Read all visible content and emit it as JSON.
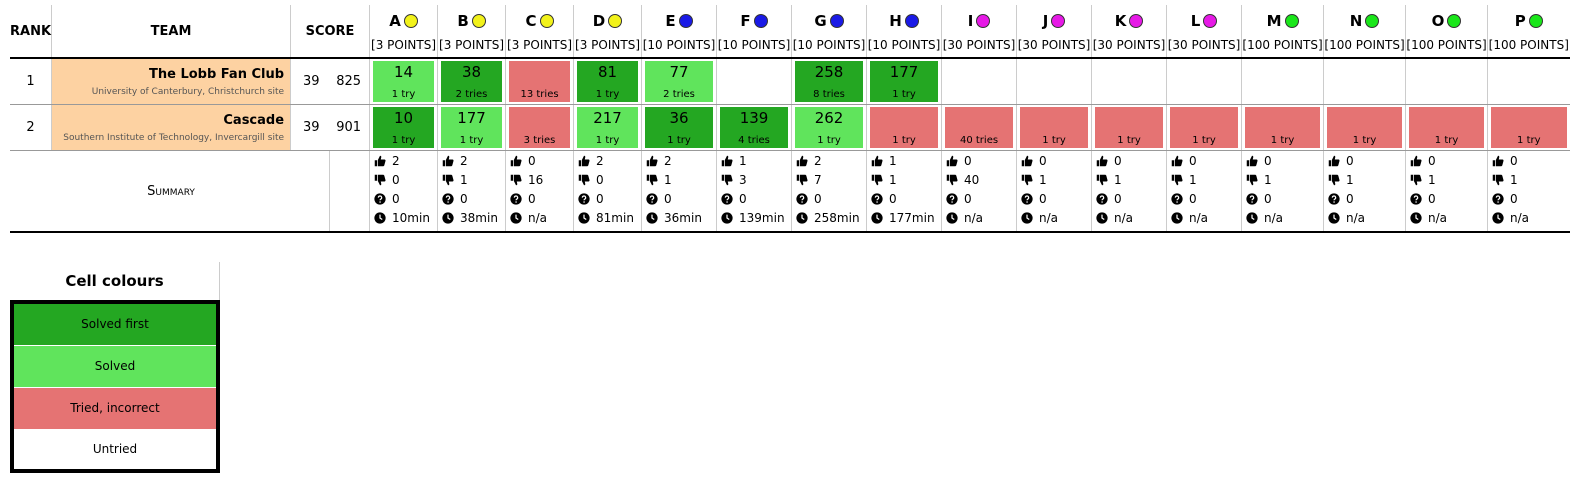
{
  "headers": {
    "rank": "RANK",
    "team": "TEAM",
    "score": "SCORE"
  },
  "problems": [
    {
      "letter": "A",
      "points": "[3 POINTS]",
      "color": "#f2f21a"
    },
    {
      "letter": "B",
      "points": "[3 POINTS]",
      "color": "#f2f21a"
    },
    {
      "letter": "C",
      "points": "[3 POINTS]",
      "color": "#f2f21a"
    },
    {
      "letter": "D",
      "points": "[3 POINTS]",
      "color": "#f2f21a"
    },
    {
      "letter": "E",
      "points": "[10 POINTS]",
      "color": "#1a1ae6"
    },
    {
      "letter": "F",
      "points": "[10 POINTS]",
      "color": "#1a1ae6"
    },
    {
      "letter": "G",
      "points": "[10 POINTS]",
      "color": "#1a1ae6"
    },
    {
      "letter": "H",
      "points": "[10 POINTS]",
      "color": "#1a1ae6"
    },
    {
      "letter": "I",
      "points": "[30 POINTS]",
      "color": "#e619e6"
    },
    {
      "letter": "J",
      "points": "[30 POINTS]",
      "color": "#e619e6"
    },
    {
      "letter": "K",
      "points": "[30 POINTS]",
      "color": "#e619e6"
    },
    {
      "letter": "L",
      "points": "[30 POINTS]",
      "color": "#e619e6"
    },
    {
      "letter": "M",
      "points": "[100 POINTS]",
      "color": "#1ae61a"
    },
    {
      "letter": "N",
      "points": "[100 POINTS]",
      "color": "#1ae61a"
    },
    {
      "letter": "O",
      "points": "[100 POINTS]",
      "color": "#1ae61a"
    },
    {
      "letter": "P",
      "points": "[100 POINTS]",
      "color": "#1ae61a"
    }
  ],
  "teams": [
    {
      "rank": "1",
      "name": "The Lobb Fan Club",
      "institution": "University of Canterbury, Christchurch site",
      "solved": "39",
      "penalty": "825",
      "results": [
        {
          "status": "solved",
          "time": "14",
          "tries": "1 try"
        },
        {
          "status": "sfirst",
          "time": "38",
          "tries": "2 tries"
        },
        {
          "status": "tried",
          "time": "",
          "tries": "13 tries"
        },
        {
          "status": "sfirst",
          "time": "81",
          "tries": "1 try"
        },
        {
          "status": "solved",
          "time": "77",
          "tries": "2 tries"
        },
        {
          "status": "untried",
          "time": "",
          "tries": ""
        },
        {
          "status": "sfirst",
          "time": "258",
          "tries": "8 tries"
        },
        {
          "status": "sfirst",
          "time": "177",
          "tries": "1 try"
        },
        {
          "status": "untried",
          "time": "",
          "tries": ""
        },
        {
          "status": "untried",
          "time": "",
          "tries": ""
        },
        {
          "status": "untried",
          "time": "",
          "tries": ""
        },
        {
          "status": "untried",
          "time": "",
          "tries": ""
        },
        {
          "status": "untried",
          "time": "",
          "tries": ""
        },
        {
          "status": "untried",
          "time": "",
          "tries": ""
        },
        {
          "status": "untried",
          "time": "",
          "tries": ""
        },
        {
          "status": "untried",
          "time": "",
          "tries": ""
        }
      ]
    },
    {
      "rank": "2",
      "name": "Cascade",
      "institution": "Southern Institute of Technology, Invercargill site",
      "solved": "39",
      "penalty": "901",
      "results": [
        {
          "status": "sfirst",
          "time": "10",
          "tries": "1 try"
        },
        {
          "status": "solved",
          "time": "177",
          "tries": "1 try"
        },
        {
          "status": "tried",
          "time": "",
          "tries": "3 tries"
        },
        {
          "status": "solved",
          "time": "217",
          "tries": "1 try"
        },
        {
          "status": "sfirst",
          "time": "36",
          "tries": "1 try"
        },
        {
          "status": "sfirst",
          "time": "139",
          "tries": "4 tries"
        },
        {
          "status": "solved",
          "time": "262",
          "tries": "1 try"
        },
        {
          "status": "tried",
          "time": "",
          "tries": "1 try"
        },
        {
          "status": "tried",
          "time": "",
          "tries": "40 tries"
        },
        {
          "status": "tried",
          "time": "",
          "tries": "1 try"
        },
        {
          "status": "tried",
          "time": "",
          "tries": "1 try"
        },
        {
          "status": "tried",
          "time": "",
          "tries": "1 try"
        },
        {
          "status": "tried",
          "time": "",
          "tries": "1 try"
        },
        {
          "status": "tried",
          "time": "",
          "tries": "1 try"
        },
        {
          "status": "tried",
          "time": "",
          "tries": "1 try"
        },
        {
          "status": "tried",
          "time": "",
          "tries": "1 try"
        }
      ]
    }
  ],
  "summary": {
    "label": "Summary",
    "cols": [
      {
        "up": "2",
        "down": "0",
        "pending": "0",
        "time": "10min"
      },
      {
        "up": "2",
        "down": "1",
        "pending": "0",
        "time": "38min"
      },
      {
        "up": "0",
        "down": "16",
        "pending": "0",
        "time": "n/a"
      },
      {
        "up": "2",
        "down": "0",
        "pending": "0",
        "time": "81min"
      },
      {
        "up": "2",
        "down": "1",
        "pending": "0",
        "time": "36min"
      },
      {
        "up": "1",
        "down": "3",
        "pending": "0",
        "time": "139min"
      },
      {
        "up": "2",
        "down": "7",
        "pending": "0",
        "time": "258min"
      },
      {
        "up": "1",
        "down": "1",
        "pending": "0",
        "time": "177min"
      },
      {
        "up": "0",
        "down": "40",
        "pending": "0",
        "time": "n/a"
      },
      {
        "up": "0",
        "down": "1",
        "pending": "0",
        "time": "n/a"
      },
      {
        "up": "0",
        "down": "1",
        "pending": "0",
        "time": "n/a"
      },
      {
        "up": "0",
        "down": "1",
        "pending": "0",
        "time": "n/a"
      },
      {
        "up": "0",
        "down": "1",
        "pending": "0",
        "time": "n/a"
      },
      {
        "up": "0",
        "down": "1",
        "pending": "0",
        "time": "n/a"
      },
      {
        "up": "0",
        "down": "1",
        "pending": "0",
        "time": "n/a"
      },
      {
        "up": "0",
        "down": "1",
        "pending": "0",
        "time": "n/a"
      }
    ],
    "icons": {
      "up": "thumbs-up-icon",
      "down": "thumbs-down-icon",
      "pending": "question-circle-icon",
      "time": "clock-icon"
    }
  },
  "legend": {
    "title": "Cell colours",
    "items": [
      {
        "label": "Solved first",
        "color": "#24a722"
      },
      {
        "label": "Solved",
        "color": "#60e45c"
      },
      {
        "label": "Tried, incorrect",
        "color": "#e57373"
      },
      {
        "label": "Untried",
        "color": "#ffffff"
      }
    ]
  }
}
